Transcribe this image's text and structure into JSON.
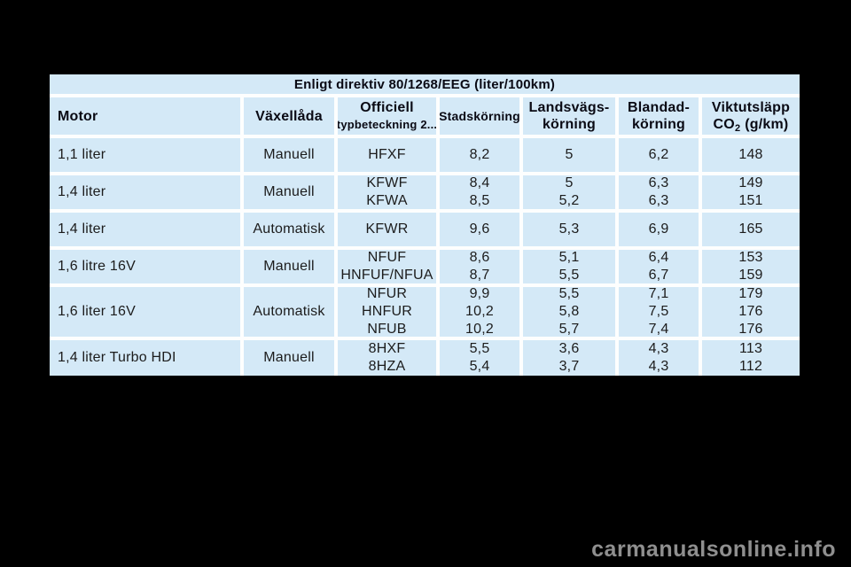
{
  "page": {
    "watermark_text": "carmanualsonline.info"
  },
  "colors": {
    "page_background": "#000000",
    "cell_blue": "#d4e9f7",
    "grid_line_white": "#fdfefe",
    "text_dark": "#1c1c1c",
    "watermark_gray": "#8f8f8f"
  },
  "table": {
    "title": "Enligt direktiv 80/1268/EEG (liter/100km)",
    "headers": {
      "motor": "Motor",
      "gearbox": "Växellåda",
      "official_line1": "Officiell",
      "official_line2": "typbeteckning 2...",
      "urban": "Stadskörning",
      "extra_urban_line1": "Landsvägs-",
      "extra_urban_line2": "körning",
      "combined_line1": "Blandad-",
      "combined_line2": "körning",
      "co2_line1": "Viktutsläpp",
      "co2_prefix": "CO",
      "co2_sub": "2",
      "co2_suffix": "(g/km)"
    },
    "rows": [
      {
        "motor": "1,1 liter",
        "gearbox": "Manuell",
        "codes": [
          "HFXF"
        ],
        "urban": [
          "8,2"
        ],
        "extra_urban": [
          "5"
        ],
        "combined": [
          "6,2"
        ],
        "co2": [
          "148"
        ]
      },
      {
        "motor": "1,4 liter",
        "gearbox": "Manuell",
        "codes": [
          "KFWF",
          "KFWA"
        ],
        "urban": [
          "8,4",
          "8,5"
        ],
        "extra_urban": [
          "5",
          "5,2"
        ],
        "combined": [
          "6,3",
          "6,3"
        ],
        "co2": [
          "149",
          "151"
        ]
      },
      {
        "motor": "1,4 liter",
        "gearbox": "Automatisk",
        "codes": [
          "KFWR"
        ],
        "urban": [
          "9,6"
        ],
        "extra_urban": [
          "5,3"
        ],
        "combined": [
          "6,9"
        ],
        "co2": [
          "165"
        ]
      },
      {
        "motor": "1,6 litre 16V",
        "gearbox": "Manuell",
        "codes": [
          "NFUF",
          "HNFUF/NFUA"
        ],
        "urban": [
          "8,6",
          "8,7"
        ],
        "extra_urban": [
          "5,1",
          "5,5"
        ],
        "combined": [
          "6,4",
          "6,7"
        ],
        "co2": [
          "153",
          "159"
        ]
      },
      {
        "motor": "1,6 liter 16V",
        "gearbox": "Automatisk",
        "codes": [
          "NFUR",
          "HNFUR",
          "NFUB"
        ],
        "urban": [
          "9,9",
          "10,2",
          "10,2"
        ],
        "extra_urban": [
          "5,5",
          "5,8",
          "5,7"
        ],
        "combined": [
          "7,1",
          "7,5",
          "7,4"
        ],
        "co2": [
          "179",
          "176",
          "176"
        ]
      },
      {
        "motor": "1,4 liter Turbo HDI",
        "gearbox": "Manuell",
        "codes": [
          "8HXF",
          "8HZA"
        ],
        "urban": [
          "5,5",
          "5,4"
        ],
        "extra_urban": [
          "3,6",
          "3,7"
        ],
        "combined": [
          "4,3",
          "4,3"
        ],
        "co2": [
          "113",
          "112"
        ]
      }
    ]
  }
}
